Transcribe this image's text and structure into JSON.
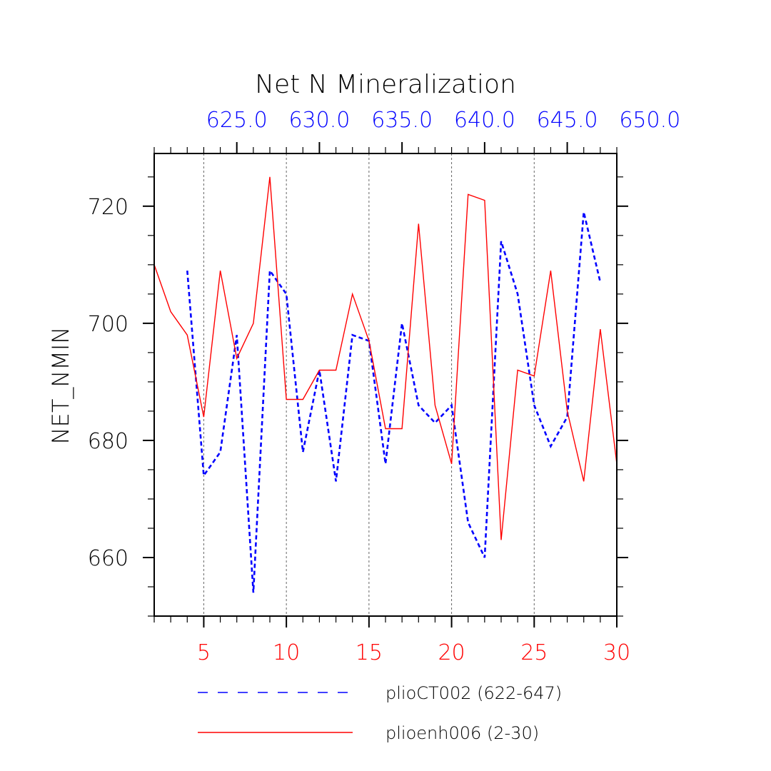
{
  "chart_data": {
    "type": "line",
    "title": "Net N Mineralization",
    "ylabel": "NET_NMIN",
    "ylim": [
      650,
      729
    ],
    "y_ticks": [
      660,
      680,
      700,
      720
    ],
    "y_tick_labels": [
      "660",
      "680",
      "700",
      "720"
    ],
    "x_bottom": {
      "range": [
        2,
        30
      ],
      "ticks": [
        5,
        10,
        15,
        20,
        25,
        30
      ],
      "tick_labels": [
        "5",
        "10",
        "15",
        "20",
        "25",
        "30"
      ],
      "color": "#ff0000"
    },
    "x_top": {
      "range": [
        620,
        648
      ],
      "ticks": [
        625,
        630,
        635,
        640,
        645,
        650
      ],
      "tick_labels": [
        "625.0",
        "630.0",
        "635.0",
        "640.0",
        "645.0",
        "650.0"
      ],
      "color": "#0000ff"
    },
    "series": [
      {
        "name": "plioCT002 (622-647)",
        "color": "#0000ff",
        "style": "dashed",
        "axis": "top",
        "x": [
          622,
          623,
          624,
          625,
          626,
          627,
          628,
          629,
          630,
          631,
          632,
          633,
          634,
          635,
          636,
          637,
          638,
          639,
          640,
          641,
          642,
          643,
          644,
          645,
          646,
          647
        ],
        "values": [
          709,
          674,
          678,
          698,
          654,
          709,
          705,
          678,
          692,
          673,
          698,
          697,
          676,
          700,
          686,
          683,
          686,
          666,
          660,
          714,
          705,
          686,
          679,
          684,
          719,
          707
        ]
      },
      {
        "name": "plioenh006 (2-30)",
        "color": "#ff0000",
        "style": "solid",
        "axis": "bottom",
        "x": [
          2,
          3,
          4,
          5,
          6,
          7,
          8,
          9,
          10,
          11,
          12,
          13,
          14,
          15,
          16,
          17,
          18,
          19,
          20,
          21,
          22,
          23,
          24,
          25,
          26,
          27,
          28,
          29,
          30
        ],
        "values": [
          710,
          702,
          698,
          684,
          709,
          694,
          700,
          725,
          687,
          687,
          692,
          692,
          705,
          697,
          682,
          682,
          717,
          686,
          676,
          722,
          721,
          663,
          692,
          691,
          709,
          685,
          673,
          699,
          676
        ]
      }
    ]
  }
}
